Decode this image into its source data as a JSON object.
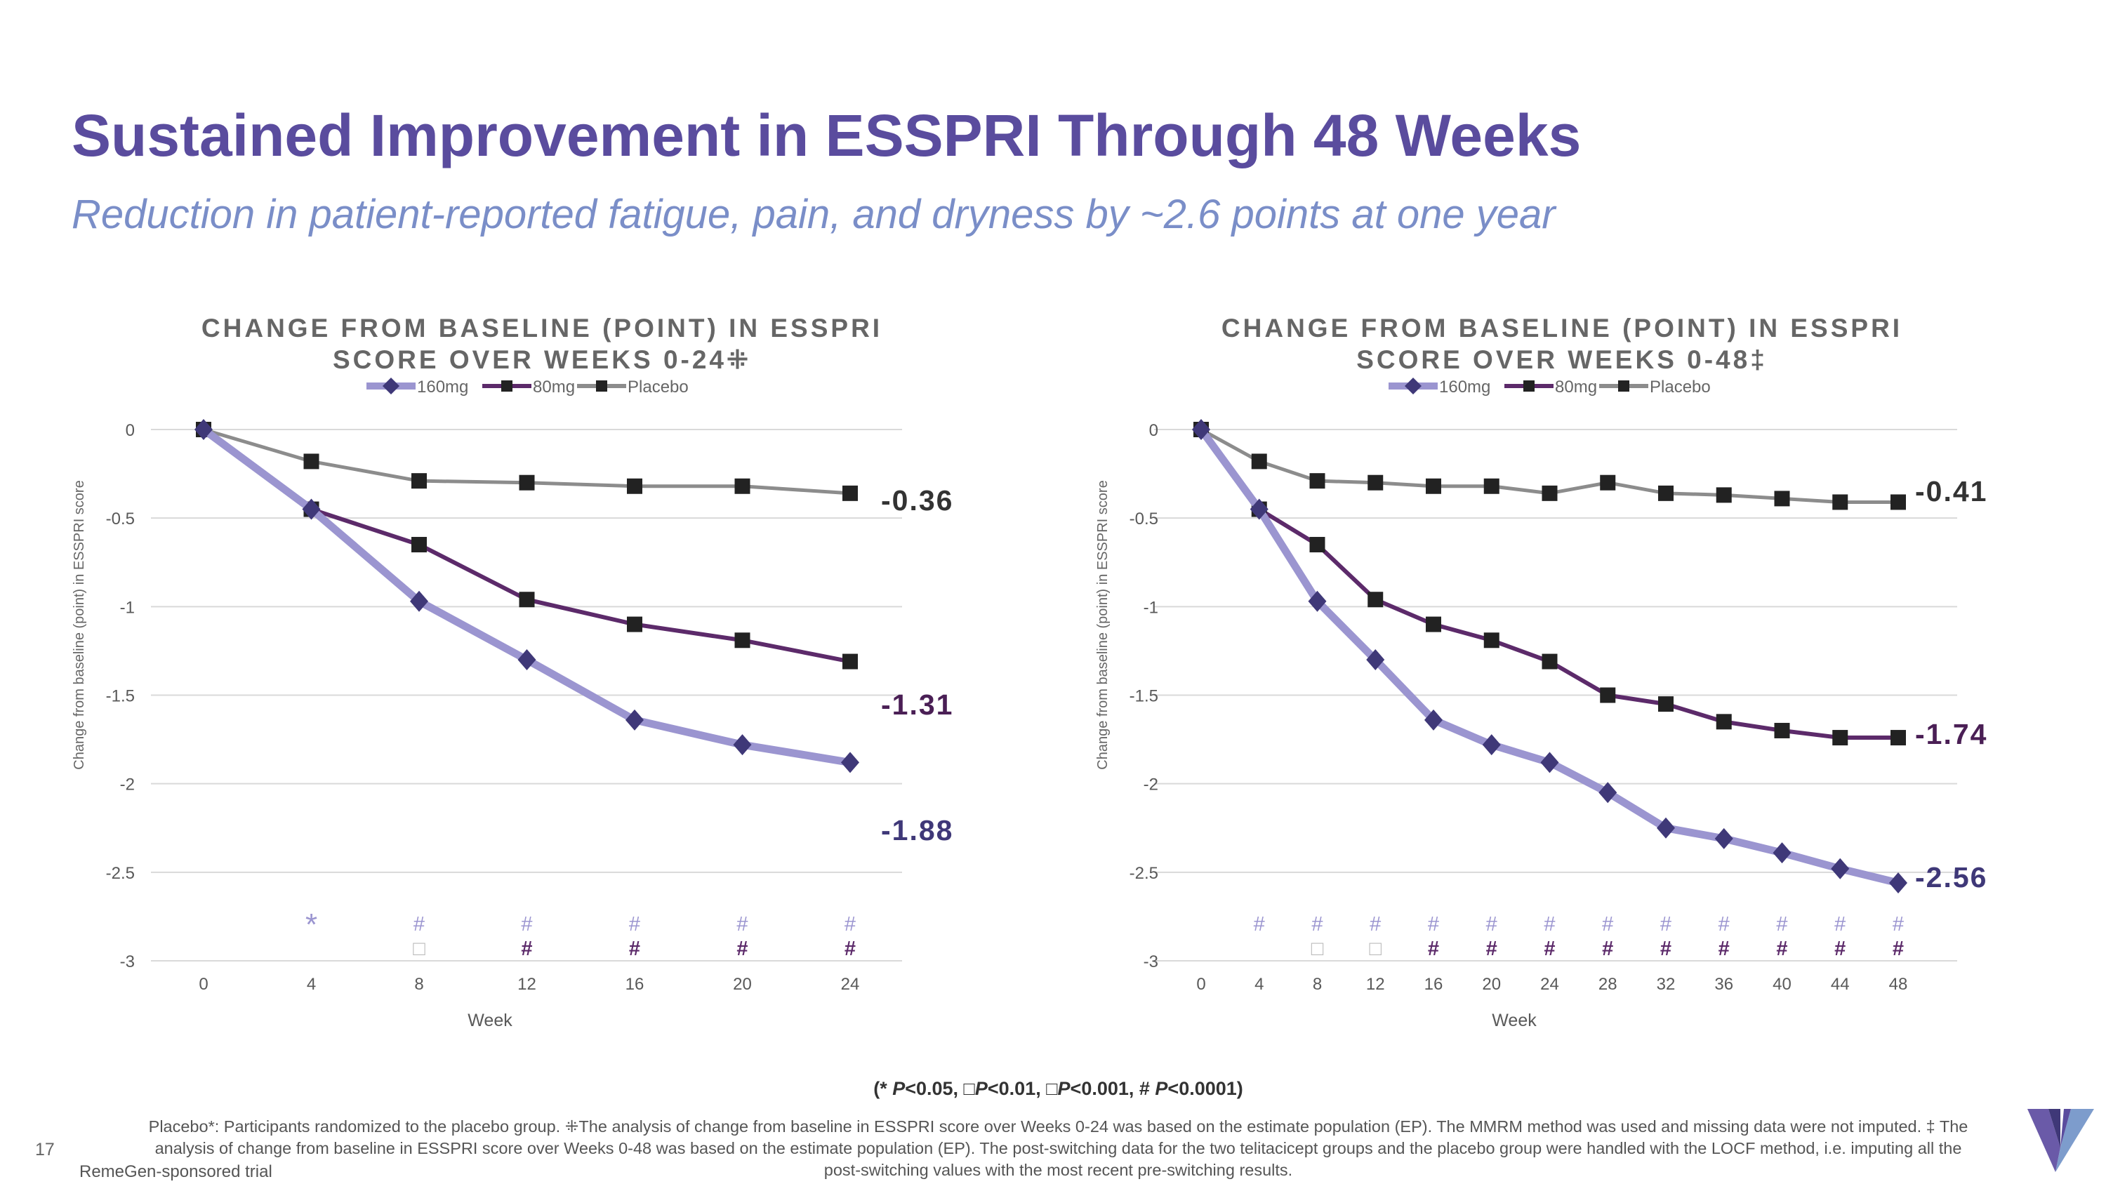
{
  "header": {
    "title": "Sustained Improvement in ESSPRI Through 48 Weeks",
    "subtitle": "Reduction in patient-reported fatigue, pain, and dryness by ~2.6 points at one year"
  },
  "chart_data": [
    {
      "type": "line",
      "title_line1": "CHANGE FROM BASELINE (POINT) IN ESSPRI",
      "title_line2": "SCORE OVER WEEKS 0-24⁜",
      "xlabel": "Week",
      "ylabel": "Change from baseline (point) in ESSPRI score",
      "x": [
        0,
        4,
        8,
        12,
        16,
        20,
        24
      ],
      "xticks": [
        "0",
        "4",
        "8",
        "12",
        "16",
        "20",
        "24"
      ],
      "ylim": [
        -3,
        0
      ],
      "yticks": [
        "0",
        "-0.5",
        "-1",
        "-1.5",
        "-2",
        "-2.5",
        "-3"
      ],
      "ytick_values": [
        0,
        -0.5,
        -1,
        -1.5,
        -2,
        -2.5,
        -3
      ],
      "grid": true,
      "legend": "top-center",
      "series": [
        {
          "name": "160mg",
          "color": "#9b95d0",
          "marker_color": "#3f3878",
          "marker": "diamond",
          "values": [
            0,
            -0.45,
            -0.97,
            -1.3,
            -1.64,
            -1.78,
            -1.88
          ],
          "end_label": "-1.88",
          "end_label_color": "#3f3878"
        },
        {
          "name": "80mg",
          "color": "#5c2a6a",
          "marker_color": "#222222",
          "marker": "square",
          "values": [
            0,
            -0.45,
            -0.65,
            -0.96,
            -1.1,
            -1.19,
            -1.31
          ],
          "end_label": "-1.31",
          "end_label_color": "#4a1f55"
        },
        {
          "name": "Placebo",
          "color": "#8c8c8c",
          "marker_color": "#222222",
          "marker": "square",
          "values": [
            0,
            -0.18,
            -0.29,
            -0.3,
            -0.32,
            -0.32,
            -0.36
          ],
          "end_label": "-0.36",
          "end_label_color": "#333333"
        }
      ],
      "significance_160mg": [
        "",
        "*",
        "#",
        "#",
        "#",
        "#",
        "#"
      ],
      "significance_80mg": [
        "",
        "",
        "□",
        "#",
        "#",
        "#",
        "#"
      ]
    },
    {
      "type": "line",
      "title_line1": "CHANGE FROM BASELINE (POINT) IN ESSPRI",
      "title_line2": "SCORE OVER WEEKS 0-48‡",
      "xlabel": "Week",
      "ylabel": "Change from baseline (point) in ESSPRI score",
      "x": [
        0,
        4,
        8,
        12,
        16,
        20,
        24,
        28,
        32,
        36,
        40,
        44,
        48
      ],
      "xticks": [
        "0",
        "4",
        "8",
        "12",
        "16",
        "20",
        "24",
        "28",
        "32",
        "36",
        "40",
        "44",
        "48"
      ],
      "ylim": [
        -3,
        0
      ],
      "yticks": [
        "0",
        "-0.5",
        "-1",
        "-1.5",
        "-2",
        "-2.5",
        "-3"
      ],
      "ytick_values": [
        0,
        -0.5,
        -1,
        -1.5,
        -2,
        -2.5,
        -3
      ],
      "grid": true,
      "legend": "top-center",
      "series": [
        {
          "name": "160mg",
          "color": "#9b95d0",
          "marker_color": "#3f3878",
          "marker": "diamond",
          "values": [
            0,
            -0.45,
            -0.97,
            -1.3,
            -1.64,
            -1.78,
            -1.88,
            -2.05,
            -2.25,
            -2.31,
            -2.39,
            -2.48,
            -2.56
          ],
          "end_label": "-2.56",
          "end_label_color": "#3f3878"
        },
        {
          "name": "80mg",
          "color": "#5c2a6a",
          "marker_color": "#222222",
          "marker": "square",
          "values": [
            0,
            -0.45,
            -0.65,
            -0.96,
            -1.1,
            -1.19,
            -1.31,
            -1.5,
            -1.55,
            -1.65,
            -1.7,
            -1.74,
            -1.74
          ],
          "end_label": "-1.74",
          "end_label_color": "#4a1f55"
        },
        {
          "name": "Placebo",
          "color": "#8c8c8c",
          "marker_color": "#222222",
          "marker": "square",
          "values": [
            0,
            -0.18,
            -0.29,
            -0.3,
            -0.32,
            -0.32,
            -0.36,
            -0.3,
            -0.36,
            -0.37,
            -0.39,
            -0.41,
            -0.41
          ],
          "end_label": "-0.41",
          "end_label_color": "#333333"
        }
      ],
      "significance_160mg": [
        "",
        "#",
        "#",
        "#",
        "#",
        "#",
        "#",
        "#",
        "#",
        "#",
        "#",
        "#",
        "#"
      ],
      "significance_80mg": [
        "",
        "",
        "□",
        "□",
        "#",
        "#",
        "#",
        "#",
        "#",
        "#",
        "#",
        "#",
        "#"
      ]
    }
  ],
  "significance_legend": {
    "open": "(* ",
    "p1": "P",
    "t1": "<0.05,  □",
    "p2": "P",
    "t2": "<0.01,  □",
    "p3": "P",
    "t3": "<0.001, # ",
    "p4": "P",
    "t4": "<0.0001)"
  },
  "footnote": "Placebo*: Participants randomized to the placebo group. ⁜The analysis of change from baseline in ESSPRI score over Weeks 0-24 was based on the estimate population (EP). The MMRM method was used and missing data were not imputed.  ‡ The analysis of change from baseline in ESSPRI score over Weeks 0-48 was based on the estimate population (EP). The post-switching data for the two telitacicept groups and the placebo group were handled with the LOCF method, i.e. imputing all the post-switching values with the most recent pre-switching results.",
  "footer": {
    "page_number": "17",
    "sponsor": "RemeGen-sponsored trial"
  },
  "colors": {
    "title": "#5a4c9e",
    "subtitle": "#7a8ec8",
    "sig_160mg": "#9b95d0",
    "sig_80mg": "#5c2a6a"
  }
}
